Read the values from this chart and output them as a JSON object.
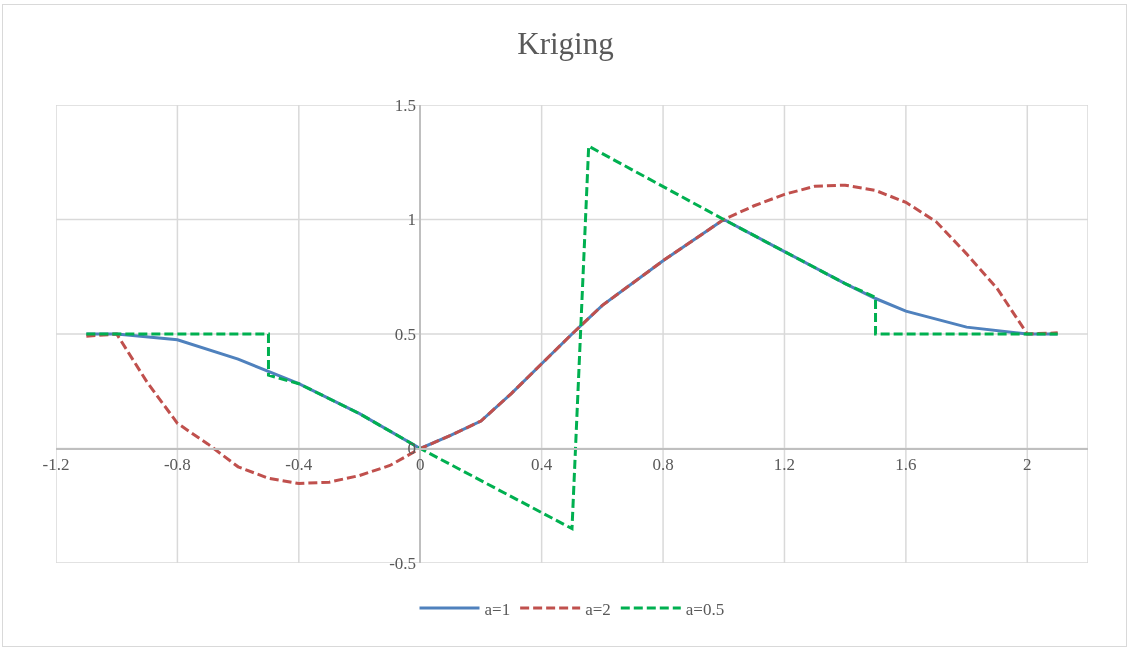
{
  "chart_data": {
    "type": "line",
    "title": "Kriging",
    "xlim": [
      -1.2,
      2.2
    ],
    "xticks": [
      -1.2,
      -0.8,
      -0.4,
      0,
      0.4,
      0.8,
      1.2,
      1.6,
      2,
      {
        "value": 2.2,
        "label": null
      }
    ],
    "ylim": [
      -0.5,
      1.5
    ],
    "yticks": [
      -0.5,
      0,
      0.5,
      1,
      1.5
    ],
    "grid": true,
    "legend": "bottom",
    "marker": "none",
    "series": [
      {
        "name": "a=1",
        "color": "#4f81bd",
        "line_style": "solid",
        "x": [
          -1.1,
          -1,
          -0.8,
          -0.6,
          -0.4,
          -0.2,
          0,
          0.1,
          0.2,
          0.3,
          0.4,
          0.5,
          0.6,
          0.8,
          1,
          1.2,
          1.4,
          1.5,
          1.6,
          1.8,
          2,
          2.1
        ],
        "values": [
          0.5,
          0.5,
          0.475,
          0.39,
          0.283,
          0.152,
          0,
          0.057,
          0.12,
          0.24,
          0.37,
          0.5,
          0.625,
          0.82,
          1,
          0.86,
          0.72,
          0.655,
          0.6,
          0.53,
          0.5,
          0.5
        ]
      },
      {
        "name": "a=2",
        "color": "#c0504d",
        "line_style": "dashed",
        "x": [
          -1.1,
          -1,
          -0.9,
          -0.8,
          -0.7,
          -0.6,
          -0.5,
          -0.4,
          -0.3,
          -0.2,
          -0.1,
          0,
          0.1,
          0.2,
          0.3,
          0.4,
          0.5,
          0.6,
          0.8,
          1,
          1.1,
          1.2,
          1.3,
          1.4,
          1.5,
          1.6,
          1.7,
          1.8,
          1.9,
          2,
          2.1
        ],
        "values": [
          0.49,
          0.5,
          0.29,
          0.11,
          0.02,
          -0.08,
          -0.13,
          -0.153,
          -0.147,
          -0.118,
          -0.074,
          0,
          0.057,
          0.12,
          0.24,
          0.37,
          0.5,
          0.625,
          0.82,
          1,
          1.06,
          1.11,
          1.145,
          1.15,
          1.127,
          1.075,
          0.99,
          0.85,
          0.7,
          0.5,
          0.505
        ]
      },
      {
        "name": "a=0.5",
        "color": "#00b050",
        "line_style": "dashed",
        "x": [
          -1.1,
          -0.5,
          -0.5,
          -0.4,
          -0.2,
          0,
          0.5,
          0.555,
          1,
          1.2,
          1.4,
          1.5,
          1.5,
          2.1
        ],
        "values": [
          0.5,
          0.5,
          0.32,
          0.283,
          0.152,
          0,
          -0.35,
          1.32,
          1,
          0.86,
          0.72,
          0.66,
          0.5,
          0.5
        ]
      }
    ]
  }
}
